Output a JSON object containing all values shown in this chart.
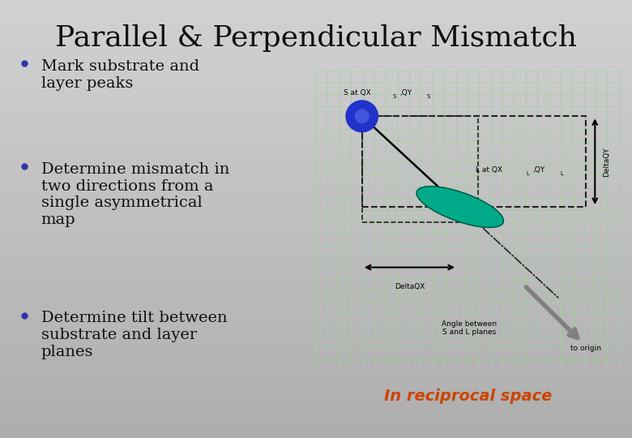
{
  "title": "Parallel & Perpendicular Mismatch",
  "title_fontsize": 26,
  "background_top": "#c8c8c8",
  "background_bottom": "#a8a8a8",
  "bullet_points": [
    "Mark substrate and\nlayer peaks",
    "Determine mismatch in\ntwo directions from a\nsingle asymmetrical\nmap",
    "Determine tilt between\nsubstrate and layer\nplanes"
  ],
  "bullet_color": "#3333aa",
  "bullet_fontsize": 14,
  "text_color": "#111111",
  "reciprocal_text": "In reciprocal space",
  "reciprocal_color": "#cc4400",
  "reciprocal_fontsize": 14,
  "diagram_bg": "#dff0df",
  "diagram_grid_color": "#a0d0a0",
  "substrate_color": "#2233cc",
  "layer_color": "#00aa88",
  "arrow_color": "#111111",
  "gray_arrow_color": "#777777",
  "dash_color": "#222222"
}
